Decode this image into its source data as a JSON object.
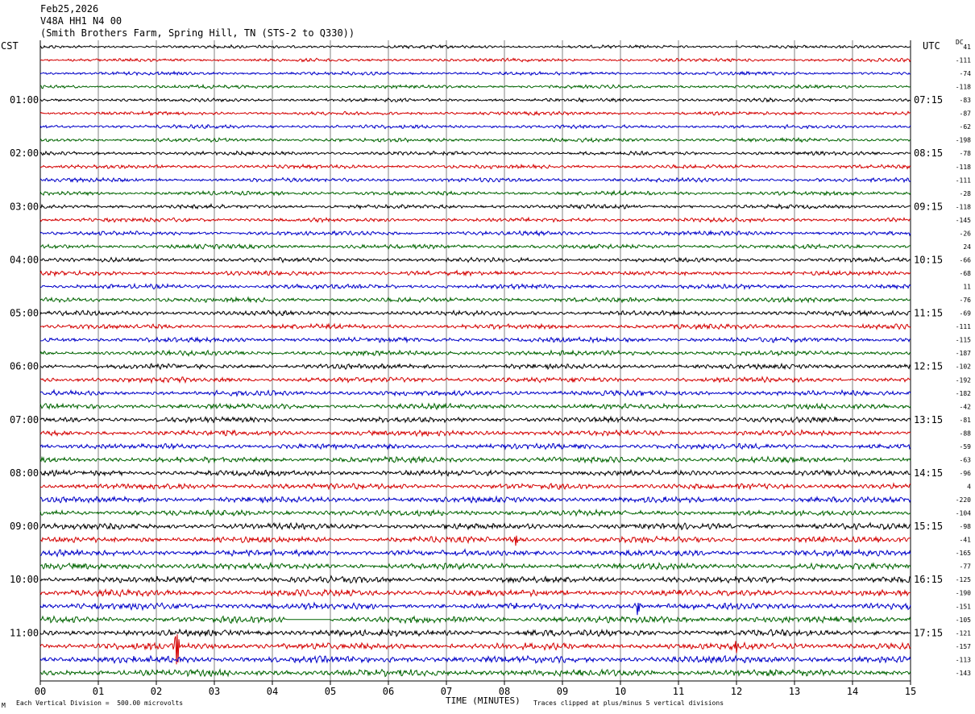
{
  "header": {
    "date": "Feb25,2026",
    "station": "V48A HH1 N4 00",
    "site": "(Smith Brothers Farm, Spring Hill, TN (STS-2 to Q330))"
  },
  "left_axis_label": "CST",
  "right_axis_label": "UTC",
  "dc_label": "DC",
  "footer": {
    "scale": "Each Vertical Division =  500.00 microvolts",
    "clip": "Traces clipped at plus/minus 5 vertical divisions",
    "corner_mark": "M"
  },
  "colors": {
    "cycle": [
      "#000000",
      "#d40000",
      "#0000c8",
      "#006400"
    ],
    "grid": "#808080"
  },
  "chart_data": {
    "type": "line",
    "title": "",
    "xlabel": "TIME (MINUTES)",
    "ylabel": "",
    "xlim": [
      0,
      15
    ],
    "x_ticks": [
      "00",
      "01",
      "02",
      "03",
      "04",
      "05",
      "06",
      "07",
      "08",
      "09",
      "10",
      "11",
      "12",
      "13",
      "14",
      "15"
    ],
    "left_hour_labels": [
      "01:00",
      "02:00",
      "03:00",
      "04:00",
      "05:00",
      "06:00",
      "07:00",
      "08:00",
      "09:00",
      "10:00",
      "11:00"
    ],
    "right_hour_labels": [
      "07:15",
      "08:15",
      "09:15",
      "10:15",
      "11:15",
      "12:15",
      "13:15",
      "14:15",
      "15:15",
      "16:15",
      "17:15"
    ],
    "trace_count": 48,
    "trace_minutes": 15,
    "dc_offsets": [
      41,
      -111,
      -74,
      -118,
      -83,
      -87,
      -62,
      -198,
      -78,
      -118,
      -111,
      -28,
      -118,
      -145,
      -26,
      24,
      -66,
      -68,
      11,
      -76,
      -69,
      -111,
      -115,
      -187,
      -102,
      -192,
      -182,
      -42,
      -81,
      -88,
      -59,
      -63,
      -96,
      4,
      -220,
      -104,
      -98,
      -41,
      -165,
      -77,
      -125,
      -190,
      -151,
      -105,
      -121,
      -157,
      -113,
      -143
    ],
    "events": [
      {
        "trace": 37,
        "minute": 8.2,
        "amplitude": 0.6
      },
      {
        "trace": 40,
        "minute": 4.0,
        "amplitude": 0.25
      },
      {
        "trace": 42,
        "minute": 10.3,
        "amplitude": 0.9
      },
      {
        "trace": 45,
        "minute": 2.35,
        "amplitude": 3.0
      },
      {
        "trace": 45,
        "minute": 11.98,
        "amplitude": 0.9
      }
    ],
    "gaps": [
      {
        "trace": 43,
        "start_minute": 4.25,
        "end_minute": 5.0
      }
    ]
  }
}
